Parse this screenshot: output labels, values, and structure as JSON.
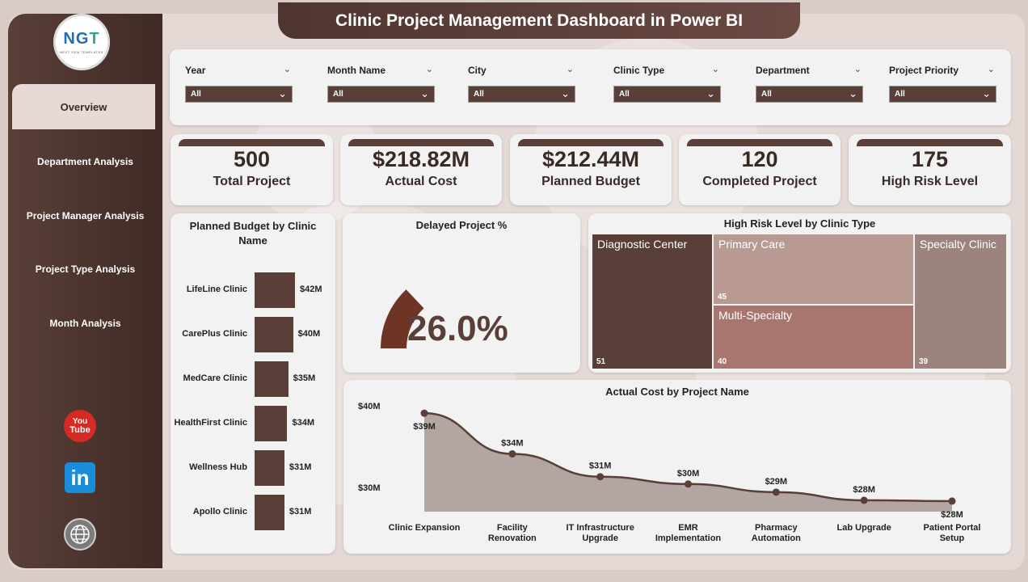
{
  "header": {
    "title": "Clinic Project Management Dashboard in Power BI"
  },
  "logo": {
    "text_a": "NG",
    "text_b": "T",
    "tagline": "NEXT GEN TEMPLATES"
  },
  "sidebar": {
    "items": [
      {
        "label": "Overview",
        "active": true
      },
      {
        "label": "Department Analysis"
      },
      {
        "label": "Project Manager Analysis"
      },
      {
        "label": "Project Type Analysis"
      },
      {
        "label": "Month Analysis"
      }
    ],
    "social": {
      "youtube": "You\nTube",
      "youtube_a": "You",
      "youtube_b": "Tube",
      "linkedin": "in"
    }
  },
  "filters": [
    {
      "label": "Year",
      "value": "All"
    },
    {
      "label": "Month Name",
      "value": "All"
    },
    {
      "label": "City",
      "value": "All"
    },
    {
      "label": "Clinic Type",
      "value": "All"
    },
    {
      "label": "Department",
      "value": "All"
    },
    {
      "label": "Project Priority",
      "value": "All"
    }
  ],
  "kpis": [
    {
      "value": "500",
      "label": "Total Project"
    },
    {
      "value": "$218.82M",
      "label": "Actual Cost"
    },
    {
      "value": "$212.44M",
      "label": "Planned Budget"
    },
    {
      "value": "120",
      "label": "Completed Project"
    },
    {
      "value": "175",
      "label": "High Risk Level"
    }
  ],
  "colors": {
    "primary": "#5a3f38",
    "gauge": "#6e3527",
    "treemap": [
      "#5a3f38",
      "#b89a92",
      "#a8766e",
      "#9c847e"
    ]
  },
  "chart_data": [
    {
      "type": "bar",
      "title": "Planned Budget by Clinic Name",
      "categories": [
        "LifeLine Clinic",
        "CarePlus Clinic",
        "MedCare Clinic",
        "HealthFirst Clinic",
        "Wellness Hub",
        "Apollo Clinic"
      ],
      "values": [
        42,
        40,
        35,
        34,
        31,
        31
      ],
      "value_labels": [
        "$42M",
        "$40M",
        "$35M",
        "$34M",
        "$31M",
        "$31M"
      ],
      "unit": "M"
    },
    {
      "type": "gauge",
      "title": "Delayed Project %",
      "value": 26.0,
      "value_label": "26.0%",
      "range": [
        0,
        100
      ]
    },
    {
      "type": "treemap",
      "title": "High Risk Level by Clinic Type",
      "items": [
        {
          "name": "Diagnostic Center",
          "value": 51
        },
        {
          "name": "Primary Care",
          "value": 45
        },
        {
          "name": "Multi-Specialty",
          "value": 40
        },
        {
          "name": "Specialty Clinic",
          "value": 39
        }
      ]
    },
    {
      "type": "area",
      "title": "Actual Cost by Project Name",
      "categories": [
        "Clinic Expansion",
        "Facility Renovation",
        "IT Infrastructure Upgrade",
        "EMR Implementation",
        "Pharmacy Automation",
        "Lab Upgrade",
        "Patient Portal Setup"
      ],
      "category_lines": [
        [
          "Clinic Expansion"
        ],
        [
          "Facility",
          "Renovation"
        ],
        [
          "IT Infrastructure",
          "Upgrade"
        ],
        [
          "EMR",
          "Implementation"
        ],
        [
          "Pharmacy",
          "Automation"
        ],
        [
          "Lab Upgrade"
        ],
        [
          "Patient Portal",
          "Setup"
        ]
      ],
      "values": [
        39.1,
        34.1,
        31.3,
        30.4,
        29.4,
        28.4,
        28.3
      ],
      "value_labels": [
        "$39M",
        "$34M",
        "$31M",
        "$30M",
        "$29M",
        "$28M",
        "$28M"
      ],
      "y_ticks": [
        {
          "value": 40,
          "label": "$40M"
        },
        {
          "value": 30,
          "label": "$30M"
        }
      ],
      "ylim": [
        27,
        41
      ]
    }
  ]
}
